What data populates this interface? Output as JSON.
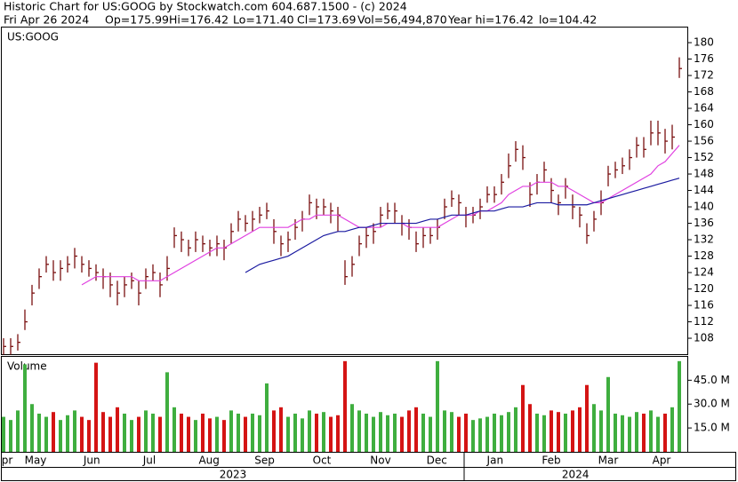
{
  "chart_data": {
    "type": "ohlc",
    "title": "Historic Chart for US:GOOG by Stockwatch.com 604.687.1500 - (c) 2024",
    "subtitle": [
      "Fri Apr 26 2024",
      "Op=175.99",
      "Hi=176.42",
      "Lo=171.40",
      "Cl=173.69",
      "Vol=56,494,870",
      "Year hi=176.42",
      "lo=104.42"
    ],
    "symbol": "US:GOOG",
    "volume_label": "Volume",
    "close": [
      106,
      106,
      107,
      112,
      119,
      123,
      126,
      124,
      125,
      126,
      128,
      126,
      125,
      124,
      123,
      121,
      119,
      121,
      122,
      119,
      123,
      124,
      121,
      125,
      133,
      132,
      130,
      132,
      131,
      130,
      131,
      130,
      134,
      137,
      136,
      137,
      138,
      139,
      134,
      131,
      132,
      135,
      137,
      141,
      140,
      140,
      139,
      138,
      123,
      126,
      131,
      133,
      134,
      138,
      139,
      139,
      136,
      135,
      131,
      133,
      133,
      135,
      140,
      142,
      141,
      138,
      138,
      140,
      143,
      143,
      146,
      150,
      154,
      152,
      143,
      146,
      149,
      144,
      141,
      145,
      140,
      138,
      133,
      137,
      141,
      148,
      149,
      150,
      152,
      155,
      154,
      158,
      158,
      156,
      157,
      173.69
    ],
    "high": [
      108,
      108,
      109,
      115,
      121,
      125,
      128,
      127,
      127,
      128,
      130,
      128,
      127,
      126,
      125,
      124,
      122,
      123,
      124,
      122,
      125,
      126,
      124,
      128,
      135,
      134,
      132,
      134,
      133,
      132,
      133,
      132,
      136,
      139,
      138,
      139,
      140,
      141,
      137,
      133,
      134,
      137,
      139,
      143,
      142,
      142,
      141,
      140,
      127,
      128,
      133,
      135,
      136,
      140,
      141,
      141,
      138,
      137,
      134,
      135,
      135,
      137,
      142,
      144,
      143,
      140,
      140,
      142,
      145,
      145,
      148,
      153,
      156,
      155,
      146,
      148,
      151,
      147,
      143,
      147,
      143,
      140,
      136,
      139,
      144,
      150,
      151,
      152,
      154,
      157,
      157,
      161,
      161,
      159,
      160,
      176.42
    ],
    "low": [
      104,
      104,
      105,
      110,
      116,
      120,
      124,
      122,
      122,
      124,
      125,
      124,
      123,
      122,
      120,
      118,
      116,
      118,
      120,
      116,
      120,
      122,
      118,
      122,
      130,
      129,
      128,
      129,
      129,
      128,
      128,
      127,
      131,
      134,
      134,
      134,
      136,
      137,
      131,
      128,
      129,
      132,
      134,
      138,
      137,
      138,
      136,
      134,
      121,
      123,
      128,
      130,
      131,
      135,
      137,
      136,
      133,
      132,
      129,
      130,
      131,
      132,
      137,
      140,
      138,
      135,
      136,
      137,
      141,
      141,
      143,
      147,
      151,
      149,
      140,
      143,
      146,
      141,
      138,
      142,
      137,
      135,
      131,
      134,
      138,
      145,
      147,
      148,
      149,
      152,
      152,
      155,
      155,
      153,
      154,
      171.4
    ],
    "volume": [
      22,
      20,
      26,
      55,
      30,
      24,
      22,
      25,
      20,
      23,
      26,
      22,
      20,
      56,
      25,
      22,
      28,
      24,
      20,
      22,
      26,
      24,
      22,
      50,
      28,
      24,
      22,
      20,
      24,
      21,
      22,
      20,
      26,
      24,
      22,
      24,
      23,
      43,
      26,
      28,
      22,
      24,
      21,
      26,
      24,
      25,
      22,
      23,
      57,
      30,
      26,
      24,
      22,
      25,
      23,
      24,
      22,
      26,
      28,
      24,
      22,
      57,
      26,
      25,
      22,
      24,
      20,
      21,
      22,
      24,
      23,
      25,
      28,
      42,
      30,
      24,
      23,
      26,
      25,
      24,
      26,
      28,
      42,
      30,
      26,
      47,
      24,
      23,
      22,
      25,
      24,
      26,
      22,
      24,
      28,
      57
    ],
    "series": [
      {
        "name": "50-day average",
        "color": "#e040e0",
        "values": [
          null,
          null,
          null,
          null,
          null,
          null,
          null,
          null,
          null,
          null,
          null,
          121,
          122,
          123,
          123,
          123,
          123,
          123,
          123,
          122,
          122,
          122,
          122,
          123,
          124,
          125,
          126,
          127,
          128,
          129,
          130,
          130,
          131,
          132,
          133,
          134,
          135,
          135,
          135,
          135,
          135,
          136,
          137,
          137,
          138,
          138,
          138,
          138,
          137,
          136,
          135,
          135,
          135,
          135,
          136,
          136,
          136,
          135,
          135,
          135,
          135,
          135,
          136,
          137,
          138,
          138,
          138,
          139,
          139,
          140,
          141,
          143,
          144,
          145,
          145,
          146,
          146,
          146,
          145,
          145,
          144,
          143,
          142,
          141,
          141,
          142,
          143,
          144,
          145,
          146,
          147,
          148,
          150,
          151,
          153,
          155
        ]
      },
      {
        "name": "200-day average",
        "color": "#1a1aa0",
        "values": [
          null,
          null,
          null,
          null,
          null,
          null,
          null,
          null,
          null,
          null,
          null,
          null,
          null,
          null,
          null,
          null,
          null,
          null,
          null,
          null,
          null,
          null,
          null,
          null,
          null,
          null,
          null,
          null,
          null,
          null,
          null,
          null,
          null,
          null,
          124,
          125,
          126,
          126.5,
          127,
          127.5,
          128,
          129,
          130,
          131,
          132,
          133,
          133.5,
          134,
          134,
          134.5,
          135,
          135,
          135.5,
          136,
          136,
          136,
          136,
          136,
          136,
          136.5,
          137,
          137,
          137.5,
          138,
          138,
          138,
          138.5,
          139,
          139,
          139,
          139.5,
          140,
          140,
          140,
          140.5,
          141,
          141,
          141,
          140.5,
          140.5,
          140.5,
          140.5,
          140.5,
          141,
          141.5,
          142,
          142.5,
          143,
          143.5,
          144,
          144.5,
          145,
          145.5,
          146,
          146.5,
          147
        ]
      }
    ],
    "ylim": [
      103.9,
      183.9
    ],
    "yticks": [
      108,
      112,
      116,
      120,
      124,
      128,
      132,
      136,
      140,
      144,
      148,
      152,
      156,
      160,
      164,
      168,
      172,
      176,
      180
    ],
    "y2lim": [
      0,
      59.7
    ],
    "y2ticks": [
      {
        "value": 15,
        "label": "15.0 M"
      },
      {
        "value": 30,
        "label": "30.0 M"
      },
      {
        "value": 45,
        "label": "45.0 M"
      }
    ],
    "xticks": [
      {
        "value": 0.5,
        "label": "pr"
      },
      {
        "value": 4.5,
        "label": "May"
      },
      {
        "value": 12.4,
        "label": "Jun"
      },
      {
        "value": 20.5,
        "label": "Jul"
      },
      {
        "value": 28.9,
        "label": "Aug"
      },
      {
        "value": 36.7,
        "label": "Sep"
      },
      {
        "value": 44.75,
        "label": "Oct"
      },
      {
        "value": 53,
        "label": "Nov"
      },
      {
        "value": 60.9,
        "label": "Dec"
      },
      {
        "value": 69.1,
        "label": "Jan"
      },
      {
        "value": 77,
        "label": "Feb"
      },
      {
        "value": 85,
        "label": "Mar"
      },
      {
        "value": 92.5,
        "label": "Apr"
      }
    ],
    "years": [
      {
        "value": 32.25,
        "label": "2023"
      },
      {
        "value": 80.4,
        "label": "2024"
      }
    ],
    "bar_color": "#7a1010",
    "up_color": "#3fae3f",
    "down_color": "#d41414"
  }
}
